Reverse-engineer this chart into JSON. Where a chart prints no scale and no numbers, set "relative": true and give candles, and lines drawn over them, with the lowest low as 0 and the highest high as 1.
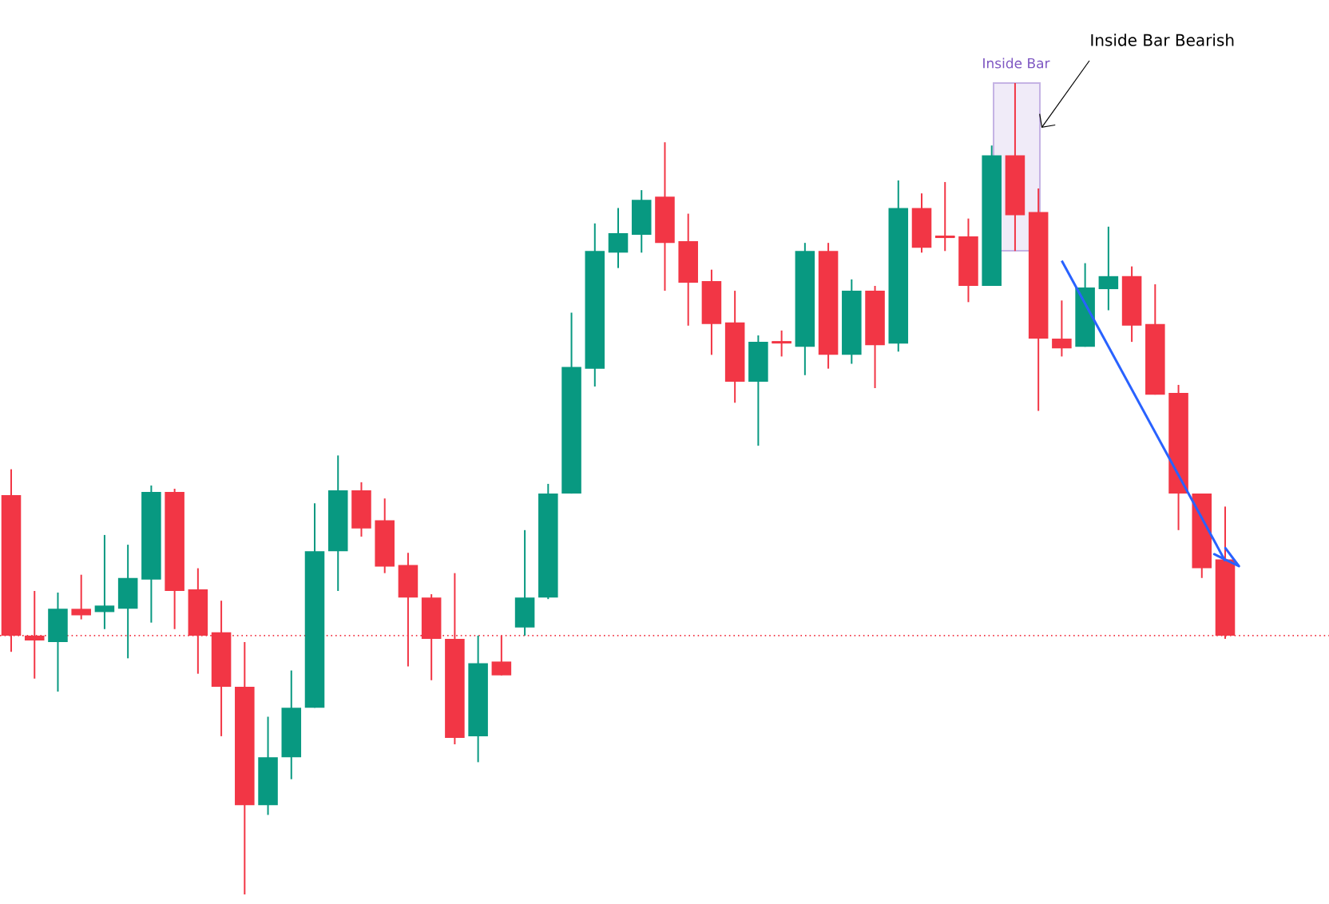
{
  "chart_data": {
    "type": "candlestick",
    "relative": true,
    "categories": [
      null,
      null,
      null,
      null,
      null,
      null,
      null,
      null,
      null,
      null,
      null,
      null,
      null,
      null,
      null,
      null,
      null,
      null,
      null,
      null,
      null,
      null,
      null,
      null,
      null,
      null,
      null,
      null,
      null,
      null,
      null,
      null,
      null,
      null,
      null,
      null,
      null,
      null,
      null,
      null,
      null,
      null,
      null,
      null,
      null,
      null,
      null,
      null,
      null,
      null,
      null,
      null,
      null
    ],
    "ohlc": [
      [
        0.492,
        0.524,
        0.299,
        0.319
      ],
      [
        0.319,
        0.374,
        0.266,
        0.313
      ],
      [
        0.311,
        0.372,
        0.25,
        0.352
      ],
      [
        0.352,
        0.394,
        0.339,
        0.344
      ],
      [
        0.348,
        0.443,
        0.327,
        0.356
      ],
      [
        0.352,
        0.431,
        0.291,
        0.39
      ],
      [
        0.388,
        0.504,
        0.335,
        0.496
      ],
      [
        0.496,
        0.5,
        0.327,
        0.374
      ],
      [
        0.376,
        0.402,
        0.272,
        0.319
      ],
      [
        0.323,
        0.362,
        0.195,
        0.256
      ],
      [
        0.256,
        0.311,
        0.0,
        0.11
      ],
      [
        0.11,
        0.219,
        0.098,
        0.169
      ],
      [
        0.169,
        0.276,
        0.142,
        0.23
      ],
      [
        0.23,
        0.482,
        0.23,
        0.423
      ],
      [
        0.423,
        0.541,
        0.374,
        0.498
      ],
      [
        0.498,
        0.508,
        0.441,
        0.451
      ],
      [
        0.461,
        0.488,
        0.396,
        0.404
      ],
      [
        0.406,
        0.421,
        0.281,
        0.366
      ],
      [
        0.366,
        0.37,
        0.264,
        0.315
      ],
      [
        0.315,
        0.396,
        0.185,
        0.193
      ],
      [
        0.195,
        0.319,
        0.163,
        0.285
      ],
      [
        0.287,
        0.319,
        0.27,
        0.27
      ],
      [
        0.329,
        0.449,
        0.319,
        0.366
      ],
      [
        0.366,
        0.506,
        0.364,
        0.494
      ],
      [
        0.494,
        0.717,
        0.494,
        0.65
      ],
      [
        0.648,
        0.827,
        0.626,
        0.793
      ],
      [
        0.791,
        0.846,
        0.772,
        0.815
      ],
      [
        0.813,
        0.868,
        0.791,
        0.856
      ],
      [
        0.86,
        0.927,
        0.744,
        0.803
      ],
      [
        0.805,
        0.839,
        0.701,
        0.754
      ],
      [
        0.756,
        0.77,
        0.665,
        0.703
      ],
      [
        0.705,
        0.744,
        0.606,
        0.632
      ],
      [
        0.632,
        0.689,
        0.553,
        0.681
      ],
      [
        0.681,
        0.695,
        0.663,
        0.679
      ],
      [
        0.675,
        0.803,
        0.64,
        0.793
      ],
      [
        0.793,
        0.803,
        0.648,
        0.665
      ],
      [
        0.665,
        0.758,
        0.654,
        0.744
      ],
      [
        0.744,
        0.75,
        0.624,
        0.677
      ],
      [
        0.679,
        0.88,
        0.669,
        0.846
      ],
      [
        0.846,
        0.864,
        0.791,
        0.797
      ],
      [
        0.811,
        0.878,
        0.793,
        0.809
      ],
      [
        0.811,
        0.833,
        0.73,
        0.75
      ],
      [
        0.75,
        0.923,
        0.75,
        0.911
      ],
      [
        0.911,
        1.0,
        0.793,
        0.837
      ],
      [
        0.841,
        0.87,
        0.596,
        0.685
      ],
      [
        0.685,
        0.732,
        0.663,
        0.673
      ],
      [
        0.675,
        0.778,
        0.675,
        0.748
      ],
      [
        0.746,
        0.823,
        0.72,
        0.762
      ],
      [
        0.762,
        0.774,
        0.681,
        0.701
      ],
      [
        0.703,
        0.752,
        0.616,
        0.616
      ],
      [
        0.618,
        0.628,
        0.449,
        0.494
      ],
      [
        0.494,
        0.494,
        0.39,
        0.402
      ],
      [
        0.413,
        0.478,
        0.315,
        0.319
      ]
    ],
    "colors": [
      "#f23645",
      "#f23645",
      "#089981",
      "#f23645",
      "#089981",
      "#089981",
      "#089981",
      "#f23645",
      "#f23645",
      "#f23645",
      "#f23645",
      "#089981",
      "#089981",
      "#089981",
      "#089981",
      "#f23645",
      "#f23645",
      "#f23645",
      "#f23645",
      "#f23645",
      "#089981",
      "#f23645",
      "#089981",
      "#089981",
      "#089981",
      "#089981",
      "#089981",
      "#089981",
      "#f23645",
      "#f23645",
      "#f23645",
      "#f23645",
      "#089981",
      "#f23645",
      "#089981",
      "#f23645",
      "#089981",
      "#f23645",
      "#089981",
      "#f23645",
      "#f23645",
      "#f23645",
      "#089981",
      "#f23645",
      "#f23645",
      "#f23645",
      "#089981",
      "#089981",
      "#f23645",
      "#f23645",
      "#f23645",
      "#f23645",
      "#f23645"
    ],
    "series": [
      {
        "type": "line",
        "color": "#2962ff",
        "values": [
          null,
          null,
          null,
          null,
          null,
          null,
          null,
          null,
          null,
          null,
          null,
          null,
          null,
          null,
          null,
          null,
          null,
          null,
          null,
          null,
          null,
          null,
          null,
          null,
          null,
          null,
          null,
          null,
          null,
          null,
          null,
          null,
          null,
          null,
          null,
          null,
          null,
          null,
          null,
          null,
          null,
          null,
          null,
          null,
          null,
          0.781,
          null,
          null,
          null,
          null,
          null,
          null,
          0.411
        ]
      }
    ],
    "ref_lines": [
      {
        "axis": "y",
        "value": 0.319,
        "color": "#f23645",
        "line_style": "dotted"
      }
    ],
    "annotations": [
      "Inside Bar",
      "Inside Bar Bearish"
    ]
  }
}
